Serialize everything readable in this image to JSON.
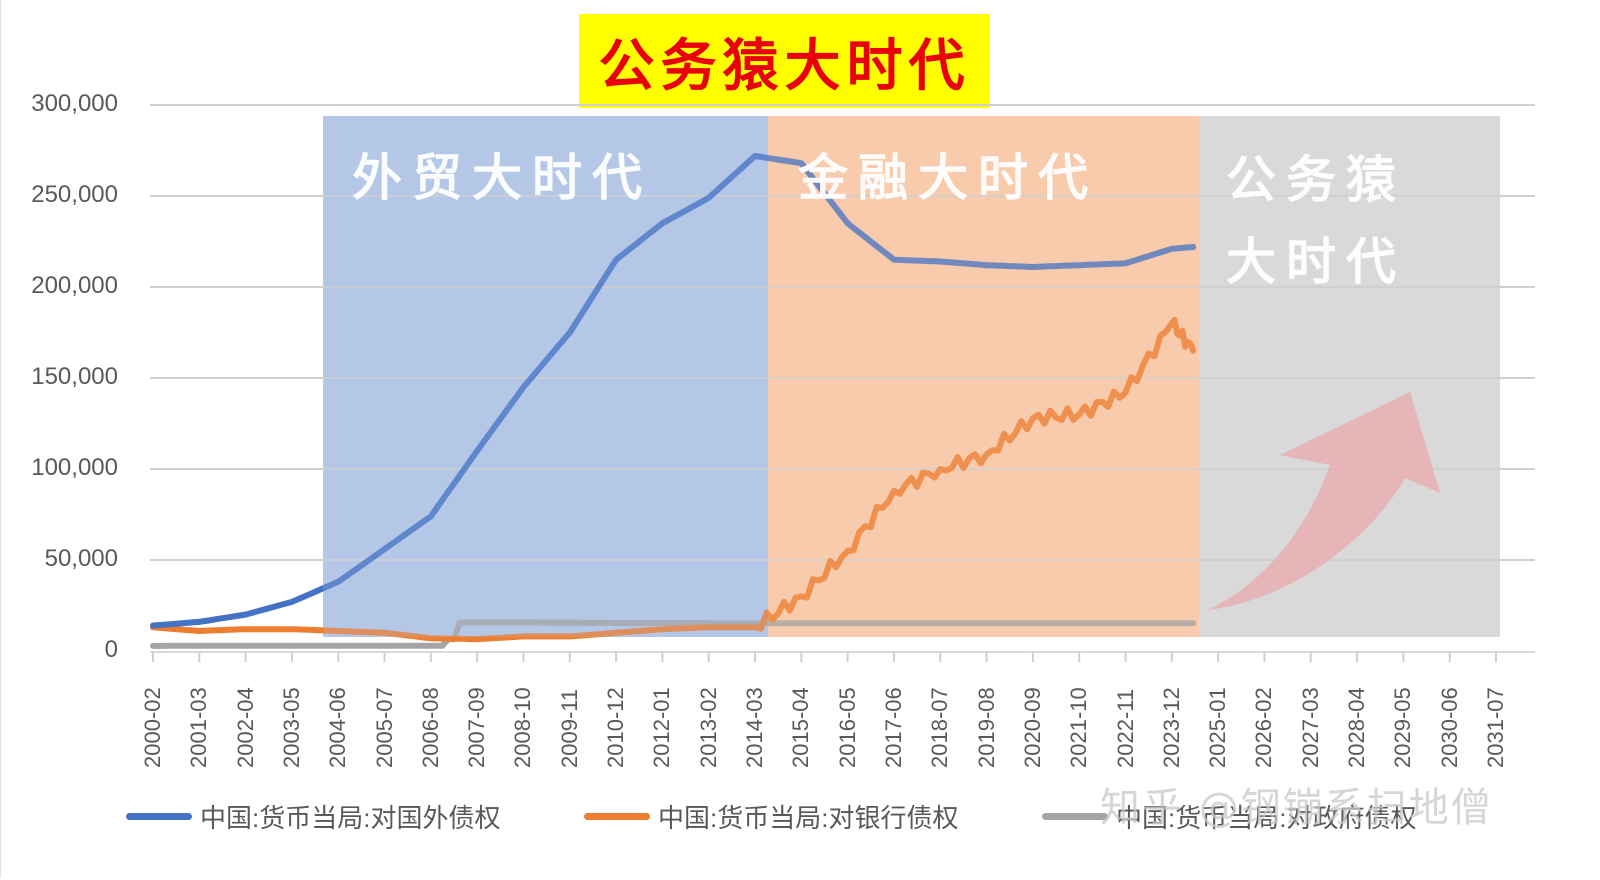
{
  "title": "公务猿大时代",
  "colors": {
    "title_bg": "#ffff00",
    "title_text": "#e8000b",
    "band_trade": "#b4c7e7",
    "band_finance": "#f8cbad",
    "band_civil": "#d9d9d9",
    "arrow": "#e6aeb0",
    "series_foreign": "#4472c4",
    "series_bank": "#ed7d31",
    "series_gov": "#a5a5a5",
    "grid": "#d9d9d9",
    "axis_text": "#595959"
  },
  "bands": [
    {
      "label": "外贸大时代",
      "start": "2004-02",
      "end": "2014-05",
      "color": "#b4c7e7"
    },
    {
      "label": "金融大时代",
      "start": "2014-05",
      "end": "2024-06",
      "color": "#f8cbad"
    },
    {
      "label_line1": "公务猿",
      "label_line2": "大时代",
      "start": "2024-06",
      "end": "2031-07",
      "color": "#d9d9d9"
    }
  ],
  "y_axis": {
    "ticks": [
      "300,000",
      "250,000",
      "200,000",
      "150,000",
      "100,000",
      "50,000",
      "0"
    ]
  },
  "x_axis": {
    "ticks": [
      "2000-02",
      "2001-03",
      "2002-04",
      "2003-05",
      "2004-06",
      "2005-07",
      "2006-08",
      "2007-09",
      "2008-10",
      "2009-11",
      "2010-12",
      "2012-01",
      "2013-02",
      "2014-03",
      "2015-04",
      "2016-05",
      "2017-06",
      "2018-07",
      "2019-08",
      "2020-09",
      "2021-10",
      "2022-11",
      "2023-12",
      "2025-01",
      "2026-02",
      "2027-03",
      "2028-04",
      "2029-05",
      "2030-06",
      "2031-07"
    ]
  },
  "legend": [
    {
      "label": "中国:货币当局:对国外债权",
      "color": "#4472c4"
    },
    {
      "label": "中国:货币当局:对银行债权",
      "color": "#ed7d31"
    },
    {
      "label": "中国:货币当局:对政府债权",
      "color": "#a5a5a5"
    }
  ],
  "watermark": "知乎 @钢镚系扫地僧",
  "chart_data": {
    "type": "line",
    "title": "公务猿大时代",
    "xlabel": "",
    "ylabel": "",
    "ylim": [
      0,
      300000
    ],
    "grid": true,
    "legend_position": "bottom",
    "x": [
      "2000-02",
      "2001-03",
      "2002-04",
      "2003-05",
      "2004-06",
      "2005-07",
      "2006-08",
      "2007-09",
      "2008-10",
      "2009-11",
      "2010-12",
      "2012-01",
      "2013-02",
      "2014-03",
      "2015-04",
      "2016-05",
      "2017-06",
      "2018-07",
      "2019-08",
      "2020-09",
      "2021-10",
      "2022-11",
      "2023-12",
      "2024-06"
    ],
    "series": [
      {
        "name": "中国:货币当局:对国外债权",
        "values": [
          14000,
          16000,
          20000,
          27000,
          38000,
          56000,
          74000,
          110000,
          145000,
          175000,
          215000,
          235000,
          249000,
          272000,
          268000,
          235000,
          215000,
          214000,
          212000,
          211000,
          212000,
          213000,
          221000,
          222000
        ]
      },
      {
        "name": "中国:货币当局:对银行债权",
        "values": [
          13000,
          11000,
          12000,
          12000,
          11000,
          10000,
          7000,
          6500,
          8000,
          8000,
          10000,
          12000,
          13000,
          13000,
          30000,
          55000,
          88000,
          100000,
          108000,
          128000,
          130000,
          142000,
          180000,
          165000
        ]
      },
      {
        "name": "中国:货币当局:对政府债权",
        "values": [
          2800,
          2900,
          2900,
          2900,
          2900,
          2900,
          2900,
          15700,
          15700,
          15500,
          15400,
          15400,
          15300,
          15300,
          15300,
          15300,
          15300,
          15300,
          15300,
          15300,
          15300,
          15300,
          15300,
          15300
        ]
      }
    ],
    "annotations": [
      "外贸大时代",
      "金融大时代",
      "公务猿大时代",
      "upward red arrow in 公务猿 band"
    ]
  }
}
